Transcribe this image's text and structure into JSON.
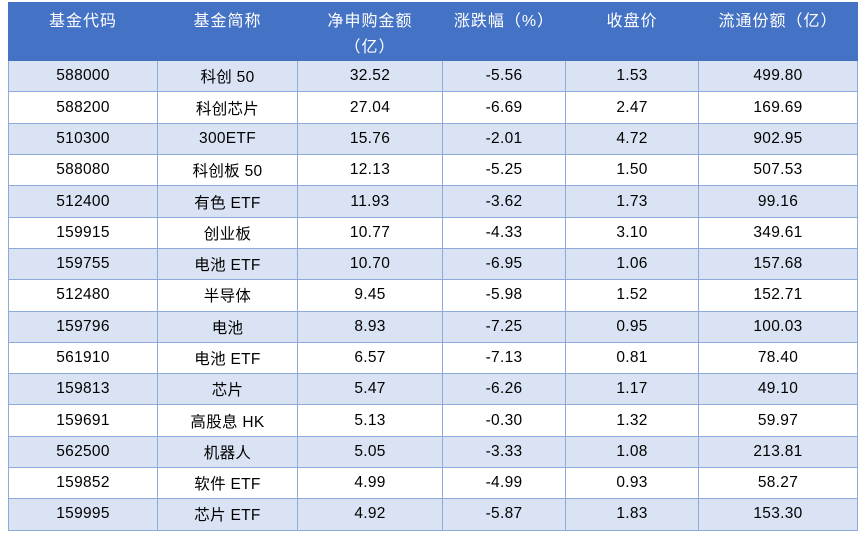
{
  "table": {
    "columns": [
      {
        "key": "code",
        "label": "基金代码"
      },
      {
        "key": "name",
        "label": "基金简称"
      },
      {
        "key": "net_purchase",
        "label": "净申购金额\n（亿）"
      },
      {
        "key": "change_pct",
        "label": "涨跌幅（%）"
      },
      {
        "key": "close",
        "label": "收盘价"
      },
      {
        "key": "float_shares",
        "label": "流通份额（亿）"
      }
    ],
    "rows": [
      {
        "code": "588000",
        "name": "科创 50",
        "net_purchase": "32.52",
        "change_pct": "-5.56",
        "close": "1.53",
        "float_shares": "499.80"
      },
      {
        "code": "588200",
        "name": "科创芯片",
        "net_purchase": "27.04",
        "change_pct": "-6.69",
        "close": "2.47",
        "float_shares": "169.69"
      },
      {
        "code": "510300",
        "name": "300ETF",
        "net_purchase": "15.76",
        "change_pct": "-2.01",
        "close": "4.72",
        "float_shares": "902.95"
      },
      {
        "code": "588080",
        "name": "科创板 50",
        "net_purchase": "12.13",
        "change_pct": "-5.25",
        "close": "1.50",
        "float_shares": "507.53"
      },
      {
        "code": "512400",
        "name": "有色 ETF",
        "net_purchase": "11.93",
        "change_pct": "-3.62",
        "close": "1.73",
        "float_shares": "99.16"
      },
      {
        "code": "159915",
        "name": "创业板",
        "net_purchase": "10.77",
        "change_pct": "-4.33",
        "close": "3.10",
        "float_shares": "349.61"
      },
      {
        "code": "159755",
        "name": "电池 ETF",
        "net_purchase": "10.70",
        "change_pct": "-6.95",
        "close": "1.06",
        "float_shares": "157.68"
      },
      {
        "code": "512480",
        "name": "半导体",
        "net_purchase": "9.45",
        "change_pct": "-5.98",
        "close": "1.52",
        "float_shares": "152.71"
      },
      {
        "code": "159796",
        "name": "电池",
        "net_purchase": "8.93",
        "change_pct": "-7.25",
        "close": "0.95",
        "float_shares": "100.03"
      },
      {
        "code": "561910",
        "name": "电池 ETF",
        "net_purchase": "6.57",
        "change_pct": "-7.13",
        "close": "0.81",
        "float_shares": "78.40"
      },
      {
        "code": "159813",
        "name": "芯片",
        "net_purchase": "5.47",
        "change_pct": "-6.26",
        "close": "1.17",
        "float_shares": "49.10"
      },
      {
        "code": "159691",
        "name": "高股息 HK",
        "net_purchase": "5.13",
        "change_pct": "-0.30",
        "close": "1.32",
        "float_shares": "59.97"
      },
      {
        "code": "562500",
        "name": "机器人",
        "net_purchase": "5.05",
        "change_pct": "-3.33",
        "close": "1.08",
        "float_shares": "213.81"
      },
      {
        "code": "159852",
        "name": "软件 ETF",
        "net_purchase": "4.99",
        "change_pct": "-4.99",
        "close": "0.93",
        "float_shares": "58.27"
      },
      {
        "code": "159995",
        "name": "芯片 ETF",
        "net_purchase": "4.92",
        "change_pct": "-5.87",
        "close": "1.83",
        "float_shares": "153.30"
      }
    ]
  },
  "colors": {
    "header_bg": "#4472C4",
    "header_text": "#FFFFFF",
    "row_alt_bg": "#DAE3F3",
    "row_bg": "#FFFFFF",
    "border": "#8EAADB",
    "text": "#000000",
    "page_bg": "#FFFFFF"
  }
}
